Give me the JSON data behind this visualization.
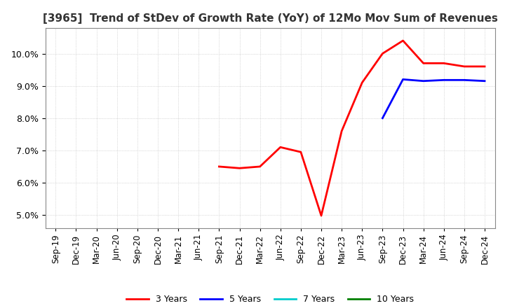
{
  "title": "[3965]  Trend of StDev of Growth Rate (YoY) of 12Mo Mov Sum of Revenues",
  "title_fontsize": 11,
  "background_color": "#ffffff",
  "grid_color": "#aaaaaa",
  "ylim": [
    0.046,
    0.108
  ],
  "yticks": [
    0.05,
    0.06,
    0.07,
    0.08,
    0.09,
    0.1
  ],
  "legend_labels": [
    "3 Years",
    "5 Years",
    "7 Years",
    "10 Years"
  ],
  "legend_colors": [
    "#ff0000",
    "#0000ff",
    "#00cccc",
    "#008000"
  ],
  "x_labels": [
    "Sep-19",
    "Dec-19",
    "Mar-20",
    "Jun-20",
    "Sep-20",
    "Dec-20",
    "Mar-21",
    "Jun-21",
    "Sep-21",
    "Dec-21",
    "Mar-22",
    "Jun-22",
    "Sep-22",
    "Dec-22",
    "Mar-23",
    "Jun-23",
    "Sep-23",
    "Dec-23",
    "Mar-24",
    "Jun-24",
    "Sep-24",
    "Dec-24"
  ],
  "series_3yr_x": [
    8,
    9,
    10,
    11,
    12,
    13,
    14,
    15,
    16,
    17,
    18,
    19,
    20,
    21
  ],
  "series_3yr_y": [
    0.065,
    0.0645,
    0.065,
    0.071,
    0.0695,
    0.0498,
    0.076,
    0.091,
    0.1,
    0.104,
    0.097,
    0.097,
    0.096,
    0.096
  ],
  "series_5yr_x": [
    16,
    17,
    18,
    19,
    20,
    21
  ],
  "series_5yr_y": [
    0.08,
    0.092,
    0.0915,
    0.0918,
    0.0918,
    0.0915
  ],
  "series_7yr_x": [],
  "series_7yr_y": [],
  "series_10yr_x": [],
  "series_10yr_y": []
}
